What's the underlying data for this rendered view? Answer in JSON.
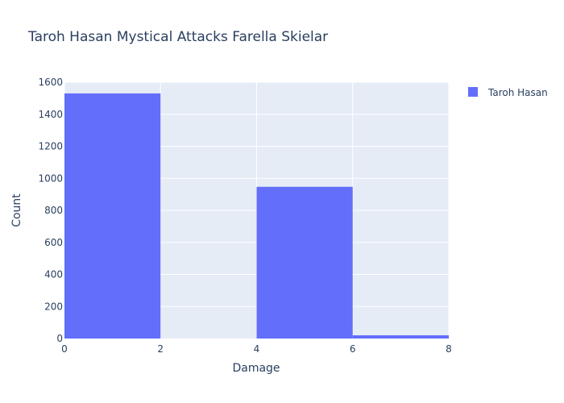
{
  "chart_data": {
    "type": "histogram",
    "title": "Taroh Hasan Mystical Attacks Farella Skielar",
    "xlabel": "Damage",
    "ylabel": "Count",
    "xlim": [
      0,
      8
    ],
    "ylim": [
      0,
      1600
    ],
    "x_ticks": [
      0,
      2,
      4,
      6,
      8
    ],
    "y_ticks": [
      0,
      200,
      400,
      600,
      800,
      1000,
      1200,
      1400,
      1600
    ],
    "series": [
      {
        "name": "Taroh Hasan",
        "color": "#636efa",
        "bins": [
          {
            "start": 0,
            "end": 2,
            "count": 1530
          },
          {
            "start": 2,
            "end": 4,
            "count": 0
          },
          {
            "start": 4,
            "end": 6,
            "count": 947
          },
          {
            "start": 6,
            "end": 8,
            "count": 20
          }
        ]
      }
    ],
    "legend": {
      "position": "top-right",
      "entries": [
        "Taroh Hasan"
      ]
    },
    "plot_bgcolor": "#e5ecf6",
    "grid": true
  }
}
